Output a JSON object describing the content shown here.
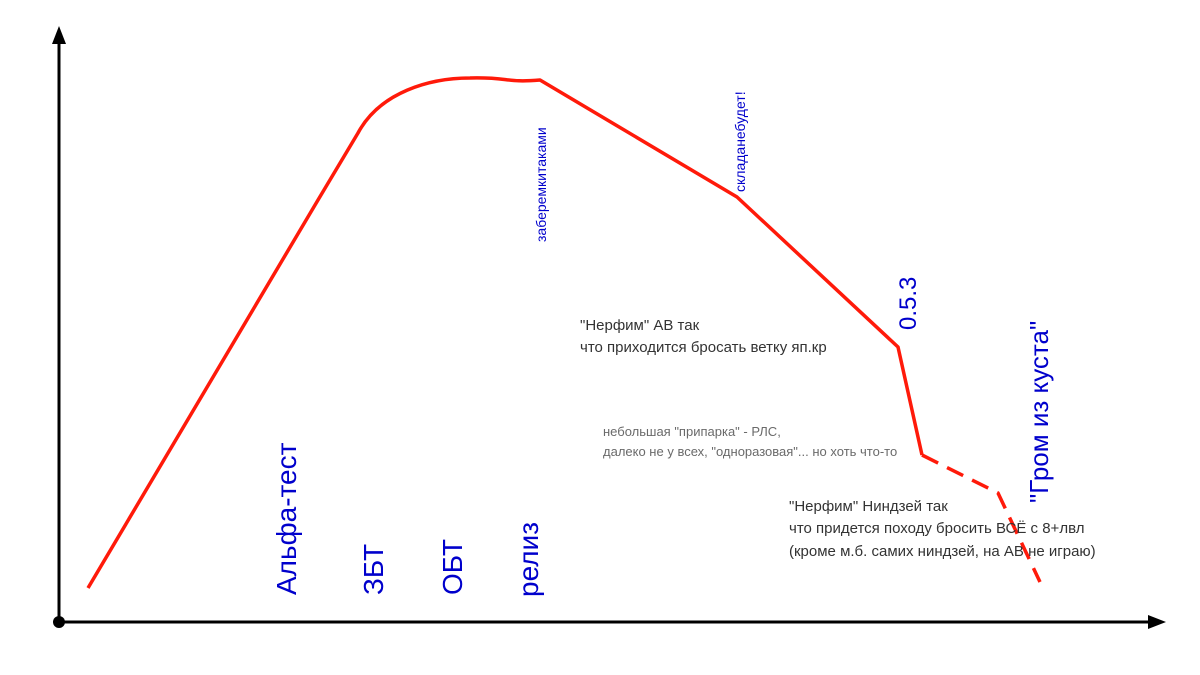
{
  "chart_data": {
    "type": "line",
    "title": "",
    "xlabel": "",
    "ylabel": "",
    "grid": false,
    "colors": {
      "axis": "#000000",
      "line": "#ff1a0a",
      "stage_text": "#0000cc",
      "note_text": "#333333",
      "note_light": "#6a6a6a"
    },
    "stages": [
      "Альфа-тест",
      "ЗБТ",
      "ОБТ",
      "релиз"
    ],
    "events": [
      "заберемкитаками",
      "складанебудет!",
      "0.5.3",
      "\"Гром из куста\""
    ],
    "notes": {
      "nerf_av": [
        "\"Нерфим\" АВ так",
        "что приходится бросать ветку яп.кр"
      ],
      "rls": [
        "небольшая \"припарка\" - РЛС,",
        "далеко не у всех, \"одноразовая\"... но хоть что-то"
      ],
      "nerf_ninja": [
        "\"Нерфим\" Ниндзей так",
        "что придется походу бросить ВСЁ с 8+лвл",
        "(кроме м.б. самих ниндзей, на АВ не играю)"
      ]
    }
  }
}
